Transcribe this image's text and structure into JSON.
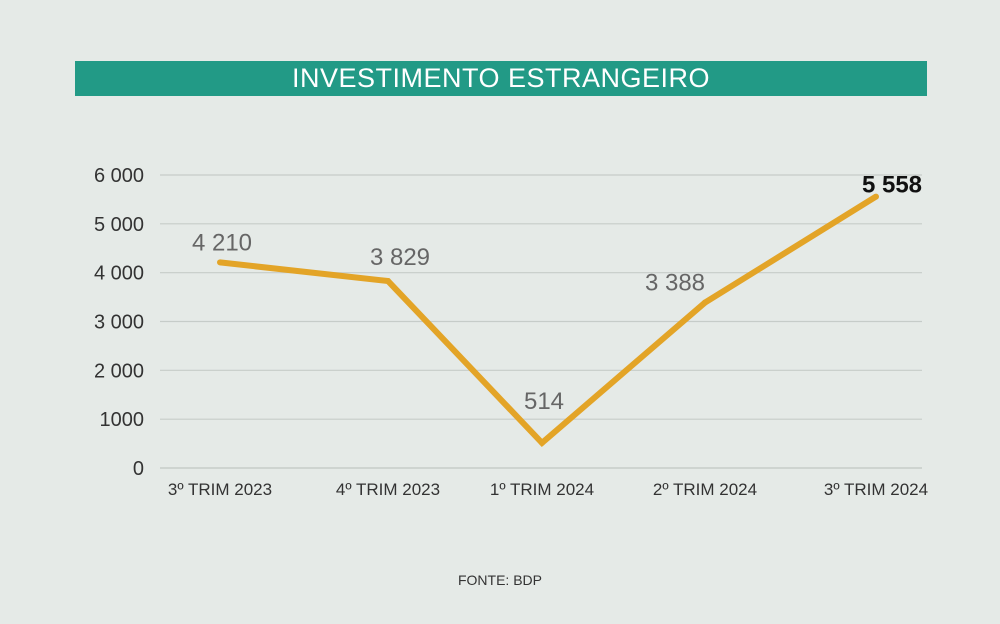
{
  "chart_data": {
    "type": "line",
    "title": "INVESTIMENTO ESTRANGEIRO",
    "categories": [
      "3º TRIM 2023",
      "4º TRIM 2023",
      "1º TRIM 2024",
      "2º TRIM 2024",
      "3º TRIM 2024"
    ],
    "series": [
      {
        "values": [
          4210,
          3829,
          514,
          3388,
          5558
        ],
        "value_labels": [
          "4 210",
          "3 829",
          "514",
          "3 388",
          "5 558"
        ],
        "color": "#e3a427"
      }
    ],
    "y_ticks": [
      0,
      1000,
      2000,
      3000,
      4000,
      5000,
      6000
    ],
    "y_tick_labels": [
      "0",
      "1000",
      "2 000",
      "3 000",
      "4 000",
      "5 000",
      "6 000"
    ],
    "ylim": [
      0,
      6000
    ],
    "grid": true,
    "highlight_last": true,
    "colors": {
      "background": "#e5eae7",
      "title_bar": "#229a86",
      "line": "#e3a427",
      "grid": "#c6ccc9",
      "label": "#666666",
      "highlight_label": "#111111"
    }
  },
  "source": "FONTE: BDP"
}
